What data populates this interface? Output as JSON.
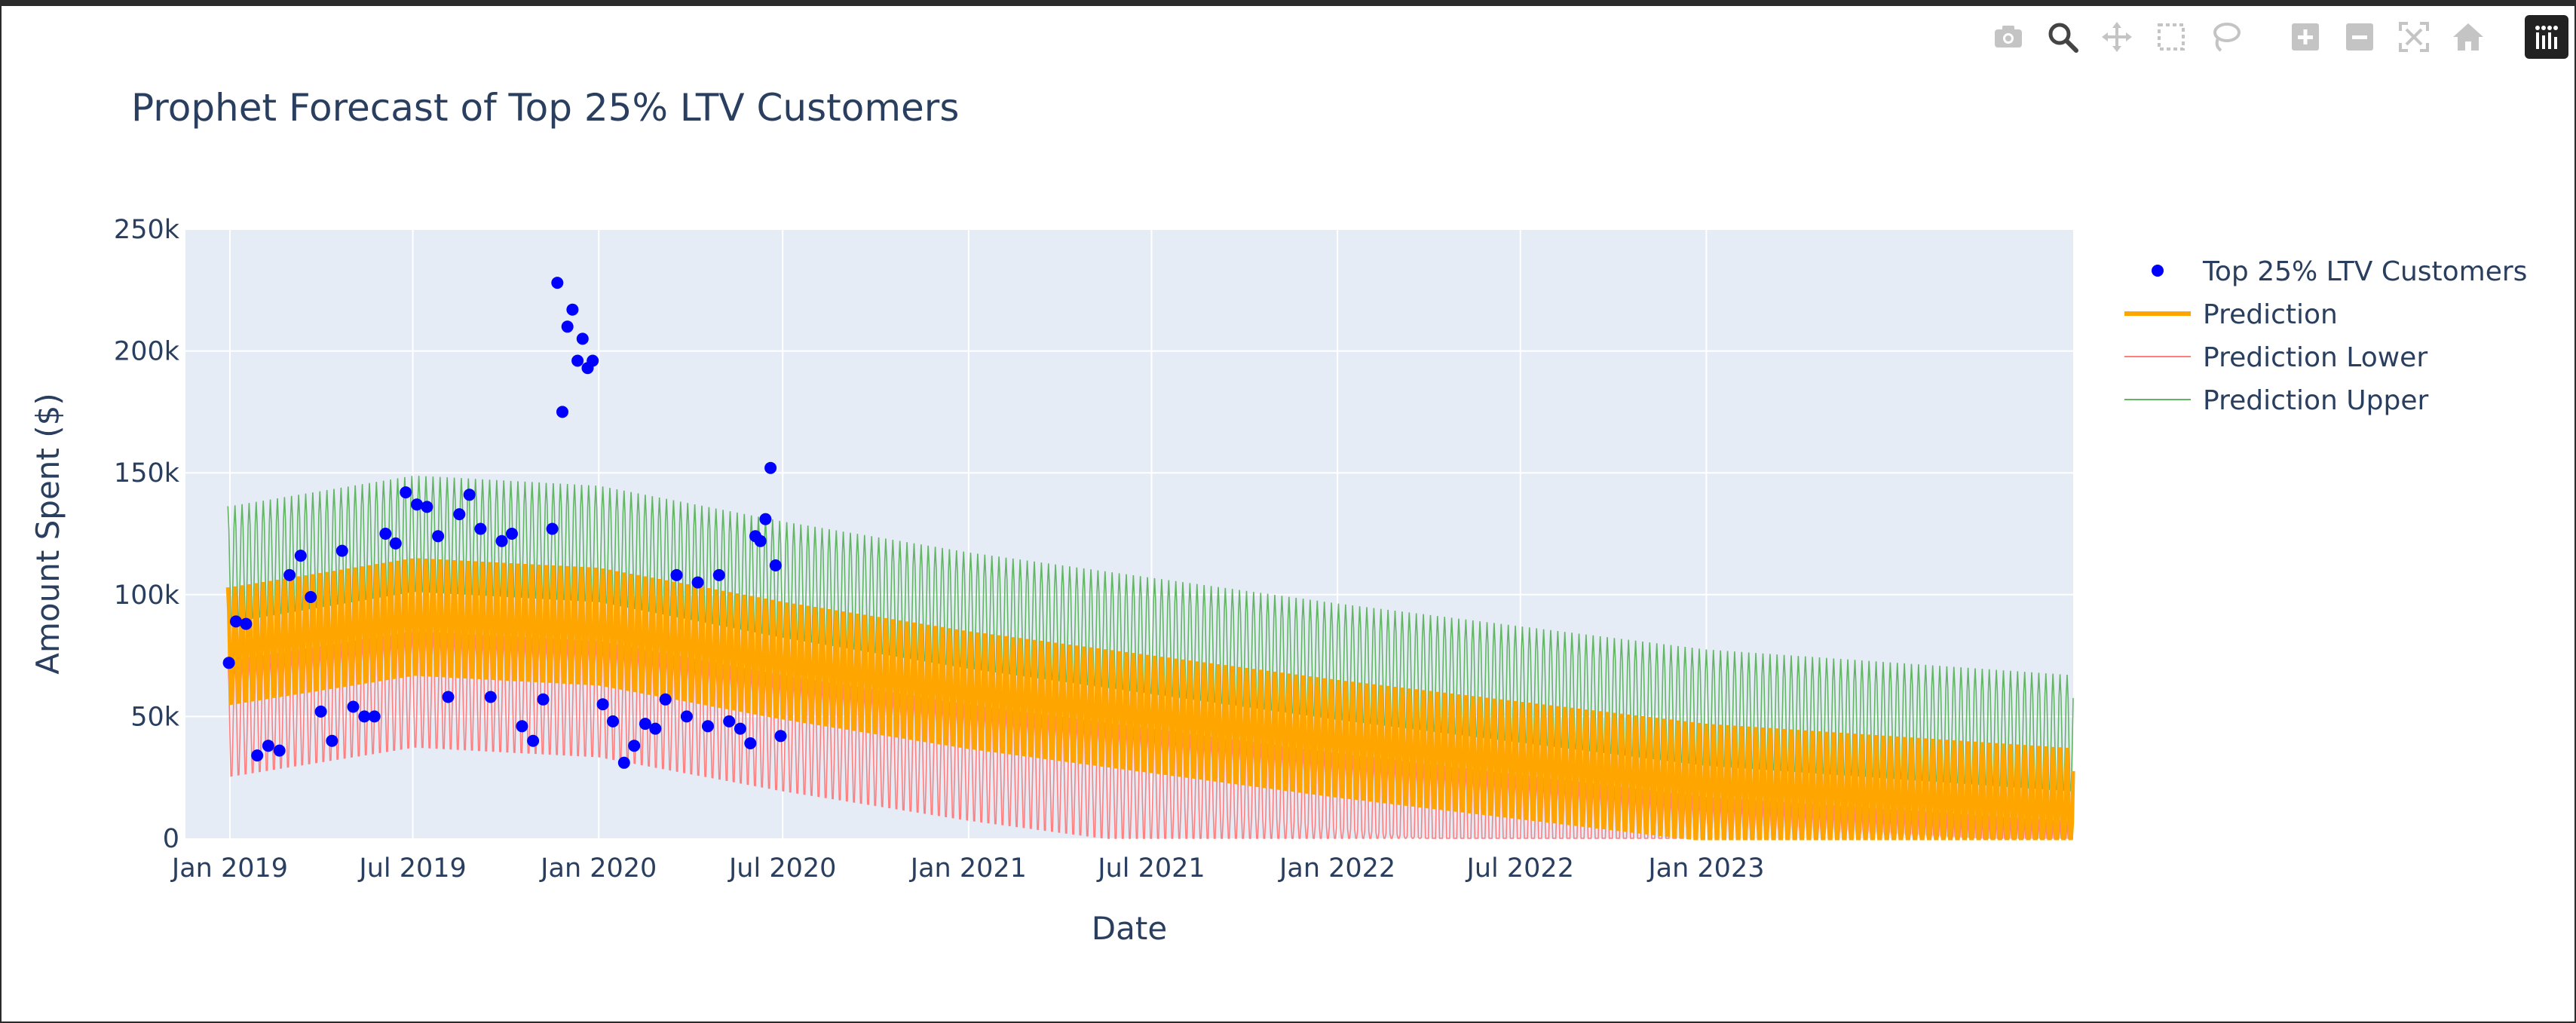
{
  "modebar": {
    "buttons": [
      "camera-icon",
      "zoom-icon",
      "pan-icon",
      "box-select-icon",
      "lasso-select-icon",
      "zoom-in-icon",
      "zoom-out-icon",
      "autoscale-icon",
      "reset-axes-icon",
      "plotly-logo-icon"
    ]
  },
  "colors": {
    "actual": "#0000ff",
    "prediction": "#ffa500",
    "lower": "#ff7f7f",
    "upper": "#62b562",
    "plot_bg": "#e5ecf6",
    "text": "#2a3f5f"
  },
  "chart_data": {
    "type": "line",
    "title": "Prophet Forecast of Top 25% LTV Customers",
    "xlabel": "Date",
    "ylabel": "Amount Spent ($)",
    "xlim": [
      "2018-11-18",
      "2023-12-30"
    ],
    "ylim": [
      0,
      250000
    ],
    "grid": true,
    "legend_position": "right",
    "x_ticks": [
      {
        "date": "2019-01-01",
        "label": "Jan 2019"
      },
      {
        "date": "2019-07-01",
        "label": "Jul 2019"
      },
      {
        "date": "2020-01-01",
        "label": "Jan 2020"
      },
      {
        "date": "2020-07-01",
        "label": "Jul 2020"
      },
      {
        "date": "2021-01-01",
        "label": "Jan 2021"
      },
      {
        "date": "2021-07-01",
        "label": "Jul 2021"
      },
      {
        "date": "2022-01-01",
        "label": "Jan 2022"
      },
      {
        "date": "2022-07-01",
        "label": "Jul 2022"
      },
      {
        "date": "2023-01-01",
        "label": "Jan 2023"
      }
    ],
    "y_ticks": [
      {
        "value": 0,
        "label": "0"
      },
      {
        "value": 50000,
        "label": "50k"
      },
      {
        "value": 100000,
        "label": "100k"
      },
      {
        "value": 150000,
        "label": "150k"
      },
      {
        "value": 200000,
        "label": "200k"
      },
      {
        "value": 250000,
        "label": "250k"
      }
    ],
    "series": [
      {
        "name": "Top 25% LTV Customers",
        "mode": "markers",
        "x": [
          "2018-12-31",
          "2019-01-07",
          "2019-01-17",
          "2019-01-28",
          "2019-02-08",
          "2019-02-19",
          "2019-03-01",
          "2019-03-12",
          "2019-03-22",
          "2019-04-01",
          "2019-04-12",
          "2019-04-22",
          "2019-05-03",
          "2019-05-14",
          "2019-05-24",
          "2019-06-04",
          "2019-06-14",
          "2019-06-24",
          "2019-07-05",
          "2019-07-15",
          "2019-07-26",
          "2019-08-05",
          "2019-08-16",
          "2019-08-26",
          "2019-09-06",
          "2019-09-16",
          "2019-09-27",
          "2019-10-07",
          "2019-10-17",
          "2019-10-28",
          "2019-11-07",
          "2019-11-16",
          "2019-11-21",
          "2019-11-26",
          "2019-12-01",
          "2019-12-06",
          "2019-12-11",
          "2019-12-16",
          "2019-12-21",
          "2019-12-26",
          "2020-01-05",
          "2020-01-15",
          "2020-01-26",
          "2020-02-05",
          "2020-02-16",
          "2020-02-26",
          "2020-03-07",
          "2020-03-18",
          "2020-03-28",
          "2020-04-08",
          "2020-04-18",
          "2020-04-29",
          "2020-05-09",
          "2020-05-20",
          "2020-05-30",
          "2020-06-04",
          "2020-06-09",
          "2020-06-14",
          "2020-06-19",
          "2020-06-24",
          "2020-06-29"
        ],
        "y": [
          72000,
          89000,
          88000,
          34000,
          38000,
          36000,
          108000,
          116000,
          99000,
          52000,
          40000,
          118000,
          54000,
          50000,
          50000,
          125000,
          121000,
          142000,
          137000,
          136000,
          124000,
          58000,
          133000,
          141000,
          127000,
          58000,
          122000,
          125000,
          46000,
          40000,
          57000,
          127000,
          228000,
          175000,
          210000,
          217000,
          196000,
          205000,
          193000,
          196000,
          55000,
          48000,
          31000,
          38000,
          47000,
          45000,
          57000,
          108000,
          50000,
          105000,
          46000,
          108000,
          48000,
          45000,
          39000,
          124000,
          122000,
          131000,
          152000,
          112000,
          42000
        ]
      },
      {
        "name": "Prediction",
        "mode": "lines",
        "trend": [
          [
            2019.0,
            78000
          ],
          [
            2019.5,
            90000
          ],
          [
            2020.0,
            86000
          ],
          [
            2020.5,
            72000
          ],
          [
            2021.0,
            60000
          ],
          [
            2021.5,
            50000
          ],
          [
            2022.0,
            40000
          ],
          [
            2022.5,
            31000
          ],
          [
            2023.0,
            22000
          ],
          [
            2023.99,
            12000
          ]
        ]
      },
      {
        "name": "Prediction Lower",
        "mode": "lines"
      },
      {
        "name": "Prediction Upper",
        "mode": "lines"
      }
    ]
  }
}
